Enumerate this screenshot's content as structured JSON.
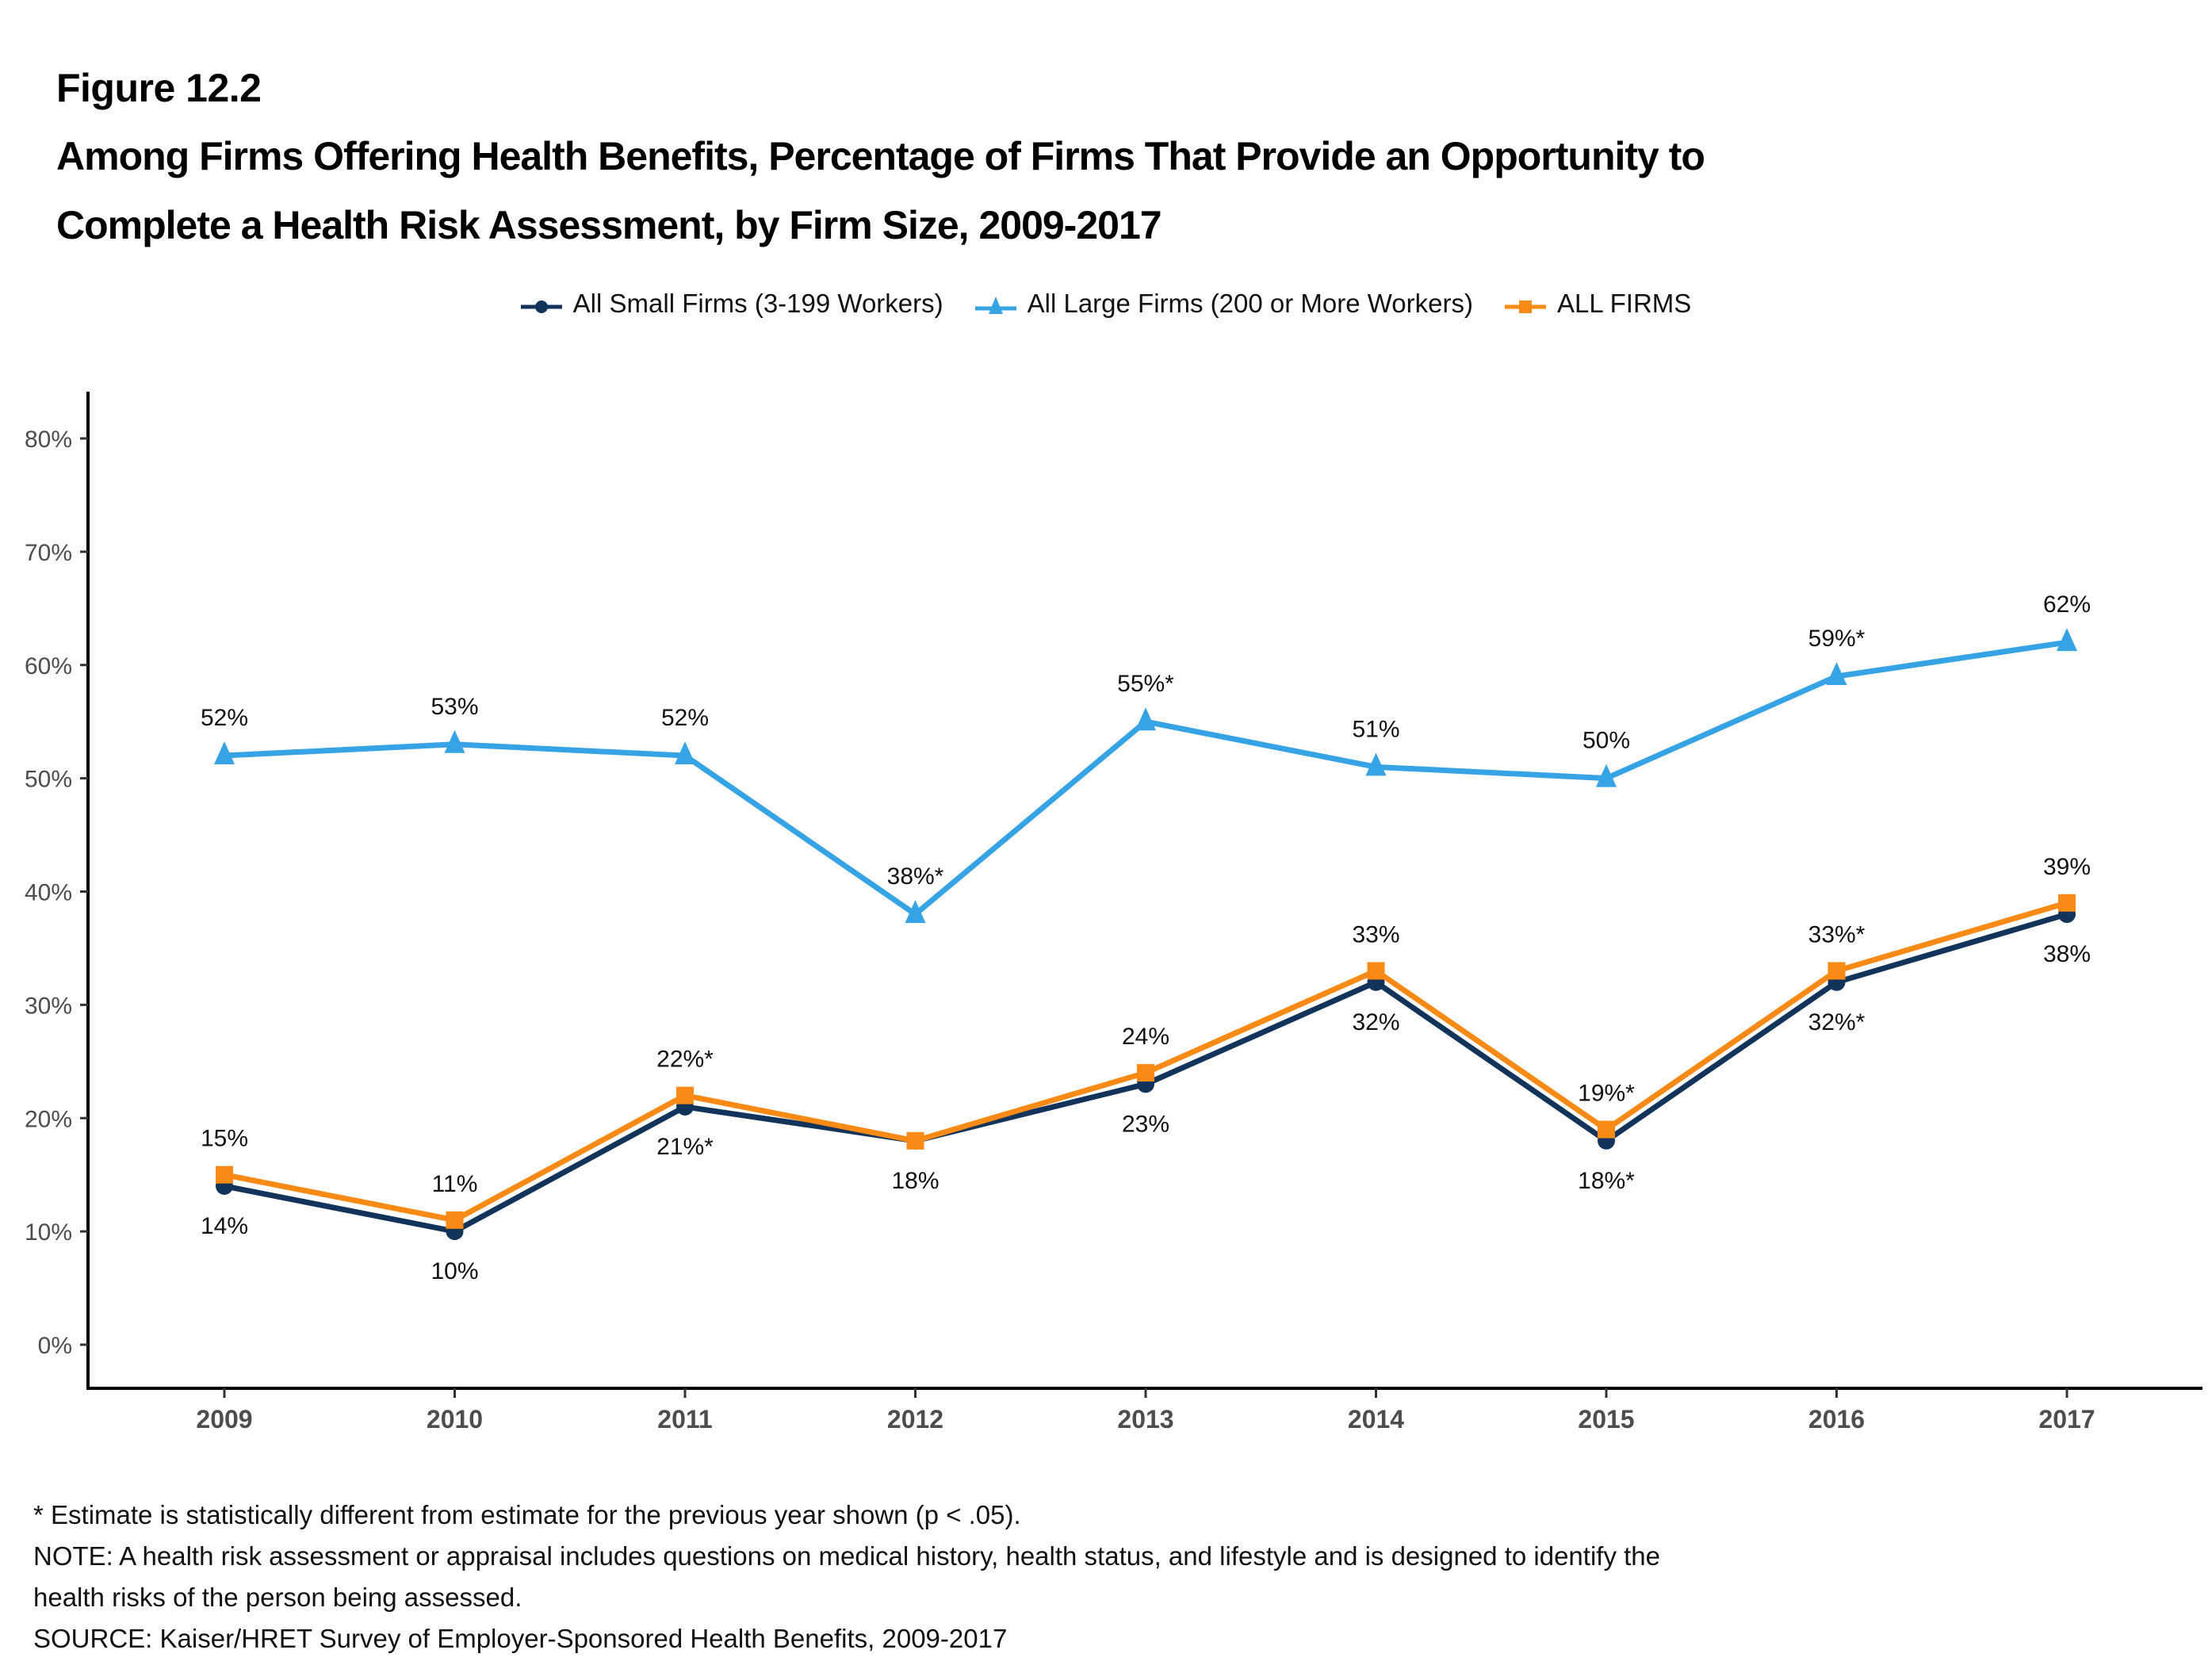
{
  "figure_label": "Figure 12.2",
  "title_lines": [
    "Among Firms Offering Health Benefits, Percentage of Firms That Provide an Opportunity to",
    "Complete a Health Risk Assessment, by Firm Size, 2009-2017"
  ],
  "legend": [
    {
      "label": "All Small Firms (3-199 Workers)",
      "marker": "circle",
      "color": "#13345a"
    },
    {
      "label": "All Large Firms (200 or More Workers)",
      "marker": "triangle",
      "color": "#36a3e5"
    },
    {
      "label": "ALL FIRMS",
      "marker": "square",
      "color": "#f88a15"
    }
  ],
  "footnotes": [
    "* Estimate is statistically different from estimate for the previous year shown (p < .05).",
    "NOTE: A health risk assessment or appraisal includes questions on medical history, health status, and lifestyle and is designed to identify the",
    "health risks of the person being assessed.",
    "SOURCE: Kaiser/HRET Survey of Employer-Sponsored Health Benefits, 2009-2017"
  ],
  "chart_data": {
    "type": "line",
    "title": "Among Firms Offering Health Benefits, Percentage of Firms That Provide an Opportunity to Complete a Health Risk Assessment, by Firm Size, 2009-2017",
    "xlabel": "",
    "ylabel": "",
    "x": [
      "2009",
      "2010",
      "2011",
      "2012",
      "2013",
      "2014",
      "2015",
      "2016",
      "2017"
    ],
    "ylim": [
      0,
      80
    ],
    "yticks": [
      0,
      10,
      20,
      30,
      40,
      50,
      60,
      70,
      80
    ],
    "ytick_labels": [
      "0%",
      "10%",
      "20%",
      "30%",
      "40%",
      "50%",
      "60%",
      "70%",
      "80%"
    ],
    "grid": false,
    "legend_position": "top-center",
    "series": [
      {
        "name": "All Small Firms (3-199 Workers)",
        "color": "#13345a",
        "marker": "circle",
        "values": [
          14,
          10,
          21,
          18,
          23,
          32,
          18,
          32,
          38
        ],
        "labels": [
          "14%",
          "10%",
          "21%*",
          "18%",
          "23%",
          "32%",
          "18%*",
          "32%*",
          "38%"
        ],
        "label_position": "below"
      },
      {
        "name": "All Large Firms (200 or More Workers)",
        "color": "#36a3e5",
        "marker": "triangle",
        "values": [
          52,
          53,
          52,
          38,
          55,
          51,
          50,
          59,
          62
        ],
        "labels": [
          "52%",
          "53%",
          "52%",
          "38%*",
          "55%*",
          "51%",
          "50%",
          "59%*",
          "62%"
        ],
        "label_position": "above"
      },
      {
        "name": "ALL FIRMS",
        "color": "#f88a15",
        "marker": "square",
        "values": [
          15,
          11,
          22,
          18,
          24,
          33,
          19,
          33,
          39
        ],
        "labels": [
          "15%",
          "11%",
          "22%*",
          "",
          "24%",
          "33%",
          "19%*",
          "33%*",
          "39%"
        ],
        "label_position": "above"
      }
    ]
  }
}
